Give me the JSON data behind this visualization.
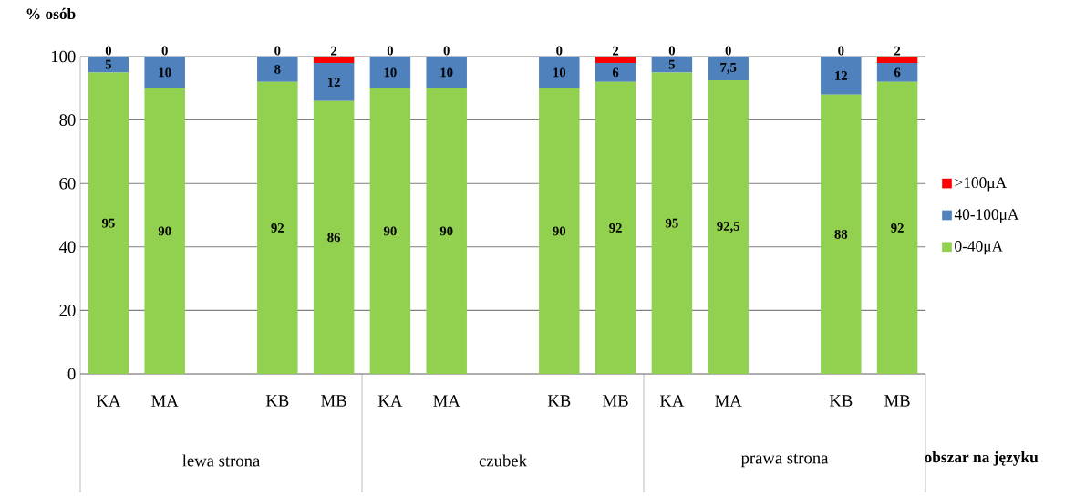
{
  "chart_data": {
    "type": "bar",
    "stacked": true,
    "ylabel": "% osób",
    "xlabel": "obszar na języku",
    "categories": [
      "KA",
      "MA",
      null,
      "KB",
      "MB",
      "KA",
      "MA",
      null,
      "KB",
      "MB",
      "KA",
      "MA",
      null,
      "KB",
      "MB"
    ],
    "annotations": [
      "lewa strona",
      "czubek",
      "prawa strona"
    ],
    "series": [
      {
        "name": "0-40μA",
        "color": "#92d050",
        "values": [
          95,
          90,
          null,
          92,
          86,
          90,
          90,
          null,
          90,
          92,
          95,
          92.5,
          null,
          88,
          92
        ],
        "value_labels": [
          "95",
          "90",
          null,
          "92",
          "86",
          "90",
          "90",
          null,
          "90",
          "92",
          "95",
          "92,5",
          null,
          "88",
          "92"
        ]
      },
      {
        "name": "40-100μA",
        "color": "#4f81bd",
        "values": [
          5,
          10,
          null,
          8,
          12,
          10,
          10,
          null,
          10,
          6,
          5,
          7.5,
          null,
          12,
          6
        ],
        "value_labels": [
          "5",
          "10",
          null,
          "8",
          "12",
          "10",
          "10",
          null,
          "10",
          "6",
          "5",
          "7,5",
          null,
          "12",
          "6"
        ]
      },
      {
        "name": ">100μA",
        "color": "#ff0000",
        "values": [
          0,
          0,
          null,
          0,
          2,
          0,
          0,
          null,
          0,
          2,
          0,
          0,
          null,
          0,
          2
        ],
        "value_labels": [
          "0",
          "0",
          null,
          "0",
          "2",
          "0",
          "0",
          null,
          "0",
          "2",
          "0",
          "0",
          null,
          "0",
          "2"
        ]
      }
    ],
    "ylim": [
      0,
      100
    ],
    "yticks": [
      0,
      20,
      40,
      60,
      80,
      100
    ],
    "grid": "y",
    "legend": "right"
  }
}
